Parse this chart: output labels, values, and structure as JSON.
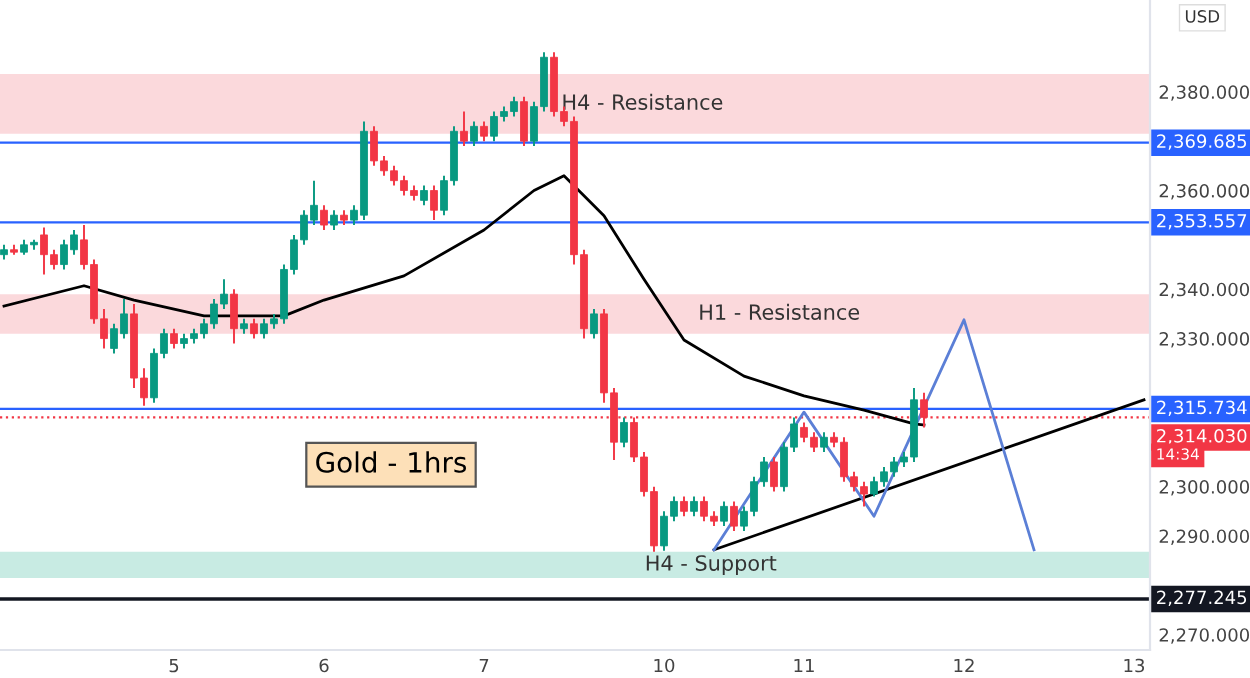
{
  "chart_data": {
    "type": "candlestick",
    "categories": [
      null,
      null,
      null,
      null,
      null,
      null,
      null,
      null,
      null,
      null,
      null,
      null,
      null,
      null,
      null,
      null,
      null,
      "5",
      null,
      null,
      null,
      null,
      null,
      null,
      null,
      null,
      null,
      null,
      null,
      null,
      null,
      null,
      "6",
      null,
      null,
      null,
      null,
      null,
      null,
      null,
      null,
      null,
      null,
      null,
      null,
      null,
      null,
      null,
      "7",
      null,
      null,
      null,
      null,
      null,
      null,
      null,
      null,
      null,
      null,
      null,
      null,
      null,
      null,
      null,
      null,
      null,
      "10",
      null,
      null,
      null,
      null,
      null,
      null,
      null,
      null,
      null,
      null,
      null,
      null,
      null,
      "11",
      null,
      null,
      null,
      null,
      null,
      null,
      null,
      null,
      null,
      null,
      null,
      null,
      null,
      null,
      null,
      "12",
      null,
      null,
      null,
      null,
      null,
      null,
      null,
      null,
      null,
      null,
      null,
      null,
      null,
      null,
      null,
      null,
      "13",
      null
    ],
    "ohlc": [
      [
        2347,
        2349,
        2346,
        2348
      ],
      [
        2348,
        2349,
        2347,
        2347.5
      ],
      [
        2347.5,
        2350,
        2347,
        2349
      ],
      [
        2349,
        2350,
        2348,
        2349.5
      ],
      [
        2351,
        2352.5,
        2343,
        2347
      ],
      [
        2347,
        2348,
        2344,
        2345
      ],
      [
        2345,
        2350,
        2344,
        2349
      ],
      [
        2348,
        2352,
        2347,
        2351
      ],
      [
        2350,
        2353,
        2344,
        2345
      ],
      [
        2345,
        2346,
        2333,
        2334
      ],
      [
        2334,
        2336,
        2328,
        2330
      ],
      [
        2328,
        2333,
        2327,
        2332
      ],
      [
        2331,
        2338,
        2330,
        2335
      ],
      [
        2335,
        2337,
        2320,
        2322
      ],
      [
        2322,
        2324,
        2316.4,
        2318
      ],
      [
        2318,
        2328,
        2317,
        2327
      ],
      [
        2327,
        2332,
        2326,
        2331
      ],
      [
        2331,
        2332,
        2328,
        2329
      ],
      [
        2329,
        2331,
        2328,
        2330
      ],
      [
        2330,
        2332,
        2329,
        2331
      ],
      [
        2331,
        2334,
        2330,
        2333
      ],
      [
        2333,
        2338,
        2332,
        2337
      ],
      [
        2337,
        2342,
        2336,
        2339
      ],
      [
        2339,
        2340,
        2329,
        2332
      ],
      [
        2332,
        2334,
        2331,
        2333
      ],
      [
        2333,
        2334,
        2330,
        2331
      ],
      [
        2331,
        2334,
        2330,
        2333
      ],
      [
        2333,
        2335,
        2332,
        2334
      ],
      [
        2334,
        2345,
        2333,
        2344
      ],
      [
        2344,
        2351,
        2343,
        2350
      ],
      [
        2350,
        2356,
        2349,
        2355
      ],
      [
        2354,
        2362,
        2353,
        2357
      ],
      [
        2356,
        2357,
        2352,
        2353
      ],
      [
        2353,
        2356,
        2352,
        2355
      ],
      [
        2355,
        2356,
        2353,
        2354
      ],
      [
        2354,
        2357,
        2353,
        2356
      ],
      [
        2355,
        2374,
        2354,
        2372
      ],
      [
        2372,
        2373,
        2365,
        2366
      ],
      [
        2366,
        2367,
        2363,
        2364
      ],
      [
        2364,
        2365,
        2361,
        2362
      ],
      [
        2362,
        2363,
        2359,
        2360
      ],
      [
        2360,
        2361,
        2358,
        2359
      ],
      [
        2358,
        2361,
        2357,
        2360
      ],
      [
        2360,
        2361,
        2354,
        2356
      ],
      [
        2356,
        2363,
        2355,
        2362
      ],
      [
        2362,
        2373,
        2361,
        2372
      ],
      [
        2372,
        2376,
        2369,
        2370
      ],
      [
        2370,
        2374,
        2369,
        2373
      ],
      [
        2373,
        2374,
        2370,
        2371
      ],
      [
        2371,
        2376,
        2370,
        2375
      ],
      [
        2375,
        2377,
        2374,
        2376
      ],
      [
        2376,
        2379,
        2375,
        2378
      ],
      [
        2378,
        2379,
        2369,
        2370
      ],
      [
        2370,
        2378,
        2369,
        2377
      ],
      [
        2377,
        2388,
        2376,
        2387
      ],
      [
        2387,
        2388,
        2375,
        2376
      ],
      [
        2376,
        2377,
        2373,
        2374
      ],
      [
        2374,
        2375,
        2345,
        2347
      ],
      [
        2347,
        2348,
        2330,
        2332
      ],
      [
        2331,
        2336,
        2330,
        2335
      ],
      [
        2335,
        2336,
        2317,
        2319
      ],
      [
        2319,
        2320,
        2305.4,
        2309
      ],
      [
        2309,
        2314,
        2308,
        2313
      ],
      [
        2313,
        2314,
        2305,
        2306
      ],
      [
        2306,
        2307,
        2298,
        2299
      ],
      [
        2299,
        2300,
        2286.8,
        2288
      ],
      [
        2288,
        2295,
        2287,
        2294
      ],
      [
        2294,
        2298,
        2293,
        2297
      ],
      [
        2297,
        2298,
        2294,
        2295
      ],
      [
        2295,
        2298,
        2294,
        2297
      ],
      [
        2297,
        2298,
        2293,
        2294
      ],
      [
        2294,
        2295,
        2292,
        2293
      ],
      [
        2293,
        2297,
        2292,
        2296
      ],
      [
        2296,
        2297,
        2291,
        2292
      ],
      [
        2292,
        2296,
        2291,
        2295
      ],
      [
        2295,
        2302,
        2294,
        2301
      ],
      [
        2301,
        2306,
        2300,
        2305
      ],
      [
        2305,
        2306,
        2299,
        2300
      ],
      [
        2300,
        2309,
        2299,
        2308
      ],
      [
        2308,
        2314,
        2307,
        2312.7
      ],
      [
        2312,
        2313,
        2309,
        2310
      ],
      [
        2310,
        2311,
        2307,
        2308
      ],
      [
        2308,
        2311,
        2307,
        2310
      ],
      [
        2310,
        2311,
        2308,
        2309
      ],
      [
        2309,
        2310,
        2301,
        2302
      ],
      [
        2302,
        2303,
        2299,
        2300
      ],
      [
        2300,
        2301,
        2296,
        2298.5
      ],
      [
        2298.5,
        2302,
        2298,
        2301
      ],
      [
        2301,
        2304,
        2300,
        2303
      ],
      [
        2303,
        2306,
        2302,
        2305
      ],
      [
        2305,
        2307,
        2304,
        2306
      ],
      [
        2306,
        2320,
        2305,
        2317.6
      ],
      [
        2317.6,
        2319,
        2312,
        2314.03
      ],
      null,
      null,
      null,
      null,
      null,
      null,
      null,
      null,
      null,
      null,
      null,
      null,
      null,
      null,
      null,
      null,
      null,
      null,
      null,
      null,
      null,
      null
    ],
    "series": [
      {
        "type": "line",
        "color": "#000000",
        "values": [
          2336.6,
          null,
          null,
          null,
          null,
          null,
          null,
          null,
          2340.7,
          null,
          null,
          null,
          null,
          2337.8,
          null,
          null,
          null,
          null,
          null,
          null,
          2334.6,
          null,
          null,
          null,
          null,
          null,
          null,
          null,
          2334.6,
          null,
          null,
          null,
          2337.8,
          null,
          null,
          null,
          null,
          null,
          null,
          null,
          2342.7,
          null,
          null,
          null,
          null,
          null,
          null,
          null,
          2352,
          null,
          null,
          null,
          null,
          2360,
          null,
          null,
          2363,
          null,
          null,
          null,
          2354.9,
          null,
          null,
          null,
          2342,
          null,
          null,
          null,
          2329.7,
          null,
          null,
          null,
          null,
          null,
          2322.4,
          null,
          null,
          null,
          null,
          null,
          2318.4,
          null,
          null,
          null,
          null,
          null,
          2315.5,
          null,
          null,
          null,
          null,
          2312.7,
          2312.5,
          null,
          null,
          null,
          null,
          null,
          null,
          null,
          null,
          null,
          null,
          null,
          null,
          null,
          null,
          null,
          null,
          null,
          null,
          null,
          null,
          null,
          null
        ]
      },
      {
        "type": "line",
        "color": "#000000",
        "values": [
          null,
          null,
          null,
          null,
          null,
          null,
          null,
          null,
          null,
          null,
          null,
          null,
          null,
          null,
          null,
          null,
          null,
          null,
          null,
          null,
          null,
          null,
          null,
          null,
          null,
          null,
          null,
          null,
          null,
          null,
          null,
          null,
          null,
          null,
          null,
          null,
          null,
          null,
          null,
          null,
          null,
          null,
          null,
          null,
          null,
          null,
          null,
          null,
          null,
          null,
          null,
          null,
          null,
          null,
          null,
          null,
          null,
          null,
          null,
          null,
          null,
          null,
          null,
          null,
          null,
          null,
          null,
          null,
          null,
          null,
          null,
          2287.2,
          null,
          null,
          null,
          null,
          null,
          null,
          null,
          null,
          null,
          null,
          null,
          null,
          null,
          null,
          null,
          null,
          null,
          null,
          null,
          null,
          null,
          null,
          null,
          null,
          null,
          null,
          null,
          null,
          null,
          null,
          null,
          null,
          null,
          null,
          null,
          null,
          null,
          null,
          null,
          null,
          null,
          null,
          2317.6
        ]
      },
      {
        "type": "line",
        "color": "#5b7fd6",
        "values": [
          null,
          null,
          null,
          null,
          null,
          null,
          null,
          null,
          null,
          null,
          null,
          null,
          null,
          null,
          null,
          null,
          null,
          null,
          null,
          null,
          null,
          null,
          null,
          null,
          null,
          null,
          null,
          null,
          null,
          null,
          null,
          null,
          null,
          null,
          null,
          null,
          null,
          null,
          null,
          null,
          null,
          null,
          null,
          null,
          null,
          null,
          null,
          null,
          null,
          null,
          null,
          null,
          null,
          null,
          null,
          null,
          null,
          null,
          null,
          null,
          null,
          null,
          null,
          null,
          null,
          null,
          null,
          null,
          null,
          null,
          null,
          2287.2,
          null,
          null,
          null,
          null,
          null,
          null,
          null,
          null,
          2315.1,
          null,
          null,
          null,
          null,
          null,
          null,
          2294,
          null,
          null,
          null,
          null,
          null,
          null,
          null,
          null,
          2333.8,
          null,
          null,
          null,
          null,
          null,
          null,
          2287.2,
          null,
          null,
          null,
          null,
          null,
          null,
          null,
          null,
          null,
          null,
          null
        ]
      }
    ],
    "ylim": [
      2266.9,
      2398.6
    ],
    "yticks": [
      {
        "value": 2270,
        "label": "2,270.000"
      },
      {
        "value": 2290,
        "label": "2,290.000"
      },
      {
        "value": 2300,
        "label": "2,300.000"
      },
      {
        "value": 2330,
        "label": "2,330.000"
      },
      {
        "value": 2340,
        "label": "2,340.000"
      },
      {
        "value": 2360,
        "label": "2,360.000"
      },
      {
        "value": 2380,
        "label": "2,380.000"
      }
    ],
    "bands": [
      {
        "axis": "y",
        "from": 2371.5,
        "to": 2383.6,
        "label": "H4 - Resistance",
        "color": "#fbd9dc"
      },
      {
        "axis": "y",
        "from": 2331,
        "to": 2339,
        "label": "H1 - Resistance",
        "color": "#fbd9dc"
      },
      {
        "axis": "y",
        "from": 2281.5,
        "to": 2286.8,
        "label": "H4 - Support",
        "color": "#c8ebe3"
      }
    ],
    "ref_lines": [
      {
        "axis": "y",
        "value": 2369.685,
        "label": "2,369.685",
        "color": "#2962ff",
        "line_style": "solid"
      },
      {
        "axis": "y",
        "value": 2353.557,
        "label": "2,353.557",
        "color": "#2962ff",
        "line_style": "solid"
      },
      {
        "axis": "y",
        "value": 2315.734,
        "label": "2,315.734",
        "color": "#2962ff",
        "line_style": "solid"
      },
      {
        "axis": "y",
        "value": 2314.03,
        "label": "2,314.030",
        "color": "#f23645",
        "line_style": "dotted"
      },
      {
        "axis": "y",
        "value": 2277.245,
        "label": "2,277.245",
        "color": "#131722",
        "line_style": "solid"
      }
    ],
    "annotations": [
      "Gold - 1hrs",
      "USD",
      "14:34"
    ],
    "grid": false
  }
}
